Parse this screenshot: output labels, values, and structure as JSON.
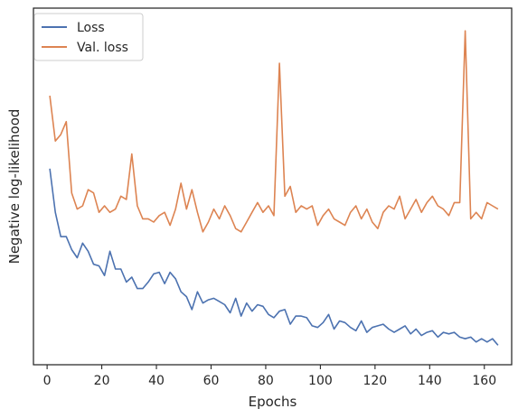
{
  "chart_data": {
    "type": "line",
    "title": "",
    "xlabel": "Epochs",
    "ylabel": "Negative log-likelihood",
    "xlim": [
      -5,
      170
    ],
    "ylim": [
      0,
      1
    ],
    "xticks": [
      0,
      20,
      40,
      60,
      80,
      100,
      120,
      140,
      160
    ],
    "y_tick_labels_shown": false,
    "grid": false,
    "legend_position": "top-left",
    "colors": {
      "Loss": "#4c72b0",
      "Val. loss": "#dd8452"
    },
    "series": [
      {
        "name": "Loss",
        "x": [
          1,
          3,
          5,
          7,
          9,
          11,
          13,
          15,
          17,
          19,
          21,
          23,
          25,
          27,
          29,
          31,
          33,
          35,
          37,
          39,
          41,
          43,
          45,
          47,
          49,
          51,
          53,
          55,
          57,
          59,
          61,
          63,
          65,
          67,
          69,
          71,
          73,
          75,
          77,
          79,
          81,
          83,
          85,
          87,
          89,
          91,
          93,
          95,
          97,
          99,
          101,
          103,
          105,
          107,
          109,
          111,
          113,
          115,
          117,
          119,
          121,
          123,
          125,
          127,
          129,
          131,
          133,
          135,
          137,
          139,
          141,
          143,
          145,
          147,
          149,
          151,
          153,
          155,
          157,
          159,
          161,
          163,
          165
        ],
        "values": [
          0.555,
          0.42,
          0.345,
          0.345,
          0.305,
          0.28,
          0.325,
          0.3,
          0.26,
          0.255,
          0.225,
          0.3,
          0.245,
          0.245,
          0.205,
          0.22,
          0.185,
          0.185,
          0.205,
          0.23,
          0.235,
          0.2,
          0.235,
          0.215,
          0.175,
          0.16,
          0.12,
          0.175,
          0.14,
          0.15,
          0.155,
          0.145,
          0.135,
          0.11,
          0.155,
          0.1,
          0.14,
          0.115,
          0.135,
          0.13,
          0.105,
          0.095,
          0.115,
          0.12,
          0.075,
          0.1,
          0.1,
          0.095,
          0.07,
          0.065,
          0.08,
          0.105,
          0.06,
          0.085,
          0.08,
          0.065,
          0.055,
          0.085,
          0.05,
          0.065,
          0.07,
          0.075,
          0.06,
          0.05,
          0.06,
          0.07,
          0.045,
          0.06,
          0.04,
          0.05,
          0.055,
          0.035,
          0.05,
          0.045,
          0.05,
          0.035,
          0.03,
          0.035,
          0.02,
          0.03,
          0.02,
          0.03,
          0.01
        ]
      },
      {
        "name": "Val. loss",
        "x": [
          1,
          3,
          5,
          7,
          9,
          11,
          13,
          15,
          17,
          19,
          21,
          23,
          25,
          27,
          29,
          31,
          33,
          35,
          37,
          39,
          41,
          43,
          45,
          47,
          49,
          51,
          53,
          55,
          57,
          59,
          61,
          63,
          65,
          67,
          69,
          71,
          73,
          75,
          77,
          79,
          81,
          83,
          85,
          87,
          89,
          91,
          93,
          95,
          97,
          99,
          101,
          103,
          105,
          107,
          109,
          111,
          113,
          115,
          117,
          119,
          121,
          123,
          125,
          127,
          129,
          131,
          133,
          135,
          137,
          139,
          141,
          143,
          145,
          147,
          149,
          151,
          153,
          155,
          157,
          159,
          161,
          163,
          165
        ],
        "values": [
          0.78,
          0.64,
          0.66,
          0.7,
          0.48,
          0.43,
          0.44,
          0.49,
          0.48,
          0.42,
          0.44,
          0.42,
          0.43,
          0.47,
          0.46,
          0.6,
          0.44,
          0.4,
          0.4,
          0.39,
          0.41,
          0.42,
          0.38,
          0.43,
          0.51,
          0.43,
          0.49,
          0.42,
          0.36,
          0.39,
          0.43,
          0.4,
          0.44,
          0.41,
          0.37,
          0.36,
          0.39,
          0.42,
          0.45,
          0.42,
          0.44,
          0.41,
          0.88,
          0.47,
          0.5,
          0.42,
          0.44,
          0.43,
          0.44,
          0.38,
          0.41,
          0.43,
          0.4,
          0.39,
          0.38,
          0.42,
          0.44,
          0.4,
          0.43,
          0.39,
          0.37,
          0.42,
          0.44,
          0.43,
          0.47,
          0.4,
          0.43,
          0.46,
          0.42,
          0.45,
          0.47,
          0.44,
          0.43,
          0.41,
          0.45,
          0.45,
          0.98,
          0.4,
          0.42,
          0.4,
          0.45,
          0.44,
          0.43
        ]
      }
    ]
  }
}
